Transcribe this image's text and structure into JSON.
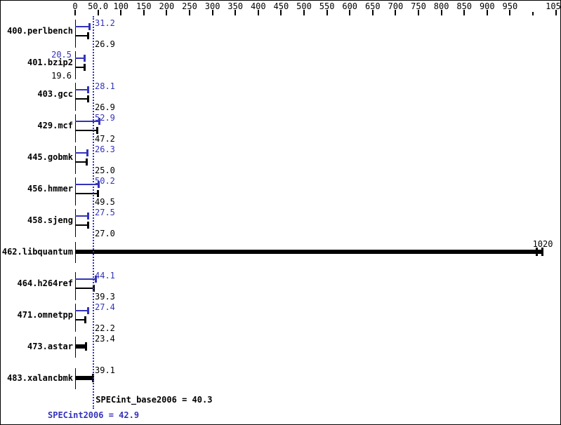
{
  "chart_data": {
    "type": "bar",
    "orientation": "horizontal",
    "title": "",
    "grid": false,
    "legend": "none",
    "axis": {
      "position": "top",
      "min": 0,
      "max": 1050,
      "tick_interval": 50,
      "tick_values": [
        0,
        50,
        100,
        150,
        200,
        250,
        300,
        350,
        400,
        450,
        500,
        550,
        600,
        650,
        700,
        750,
        800,
        850,
        900,
        950,
        1000,
        1050
      ],
      "tick_labels": [
        "0",
        "50.0",
        "100",
        "150",
        "200",
        "250",
        "300",
        "350",
        "400",
        "450",
        "500",
        "550",
        "600",
        "650",
        "700",
        "750",
        "800",
        "850",
        "900",
        "950",
        "",
        "1050"
      ]
    },
    "series_meaning": {
      "peak": "SPECint2006 (blue)",
      "base": "SPECint_base2006 (black)"
    },
    "benchmarks": [
      {
        "name": "400.perlbench",
        "peak": 31.2,
        "peak_label": "31.2",
        "base": 26.9,
        "base_label": "26.9",
        "labels_side": "right"
      },
      {
        "name": "401.bzip2",
        "peak": 20.5,
        "peak_label": "20.5",
        "base": 19.6,
        "base_label": "19.6",
        "labels_side": "left"
      },
      {
        "name": "403.gcc",
        "peak": 28.1,
        "peak_label": "28.1",
        "base": 26.9,
        "base_label": "26.9",
        "labels_side": "right"
      },
      {
        "name": "429.mcf",
        "peak": 52.9,
        "peak_label": "52.9",
        "base": 47.2,
        "base_label": "47.2",
        "labels_side": "right"
      },
      {
        "name": "445.gobmk",
        "peak": 26.3,
        "peak_label": "26.3",
        "base": 25.0,
        "base_label": "25.0",
        "labels_side": "right"
      },
      {
        "name": "456.hmmer",
        "peak": 50.2,
        "peak_label": "50.2",
        "base": 49.5,
        "base_label": "49.5",
        "labels_side": "right"
      },
      {
        "name": "458.sjeng",
        "peak": 27.5,
        "peak_label": "27.5",
        "base": 27.0,
        "base_label": "27.0",
        "labels_side": "right"
      },
      {
        "name": "462.libquantum",
        "single": true,
        "value": 1020,
        "value_label": "1020",
        "label_at_end": true,
        "double_cap": true
      },
      {
        "name": "464.h264ref",
        "peak": 44.1,
        "peak_label": "44.1",
        "base": 39.3,
        "base_label": "39.3",
        "labels_side": "right"
      },
      {
        "name": "471.omnetpp",
        "peak": 27.4,
        "peak_label": "27.4",
        "base": 22.2,
        "base_label": "22.2",
        "labels_side": "right"
      },
      {
        "name": "473.astar",
        "single": true,
        "value": 23.4,
        "value_label": "23.4"
      },
      {
        "name": "483.xalancbmk",
        "single": true,
        "value": 39.1,
        "value_label": "39.1"
      }
    ],
    "summary": {
      "base_mean": 40.3,
      "peak_mean": 42.9,
      "base_label": "SPECint_base2006 = 40.3",
      "peak_label": "SPECint2006 = 42.9"
    },
    "colors": {
      "peak": "#3333bb",
      "base": "#000000",
      "background": "#ffffff",
      "mean_line": "#3333bb"
    }
  }
}
